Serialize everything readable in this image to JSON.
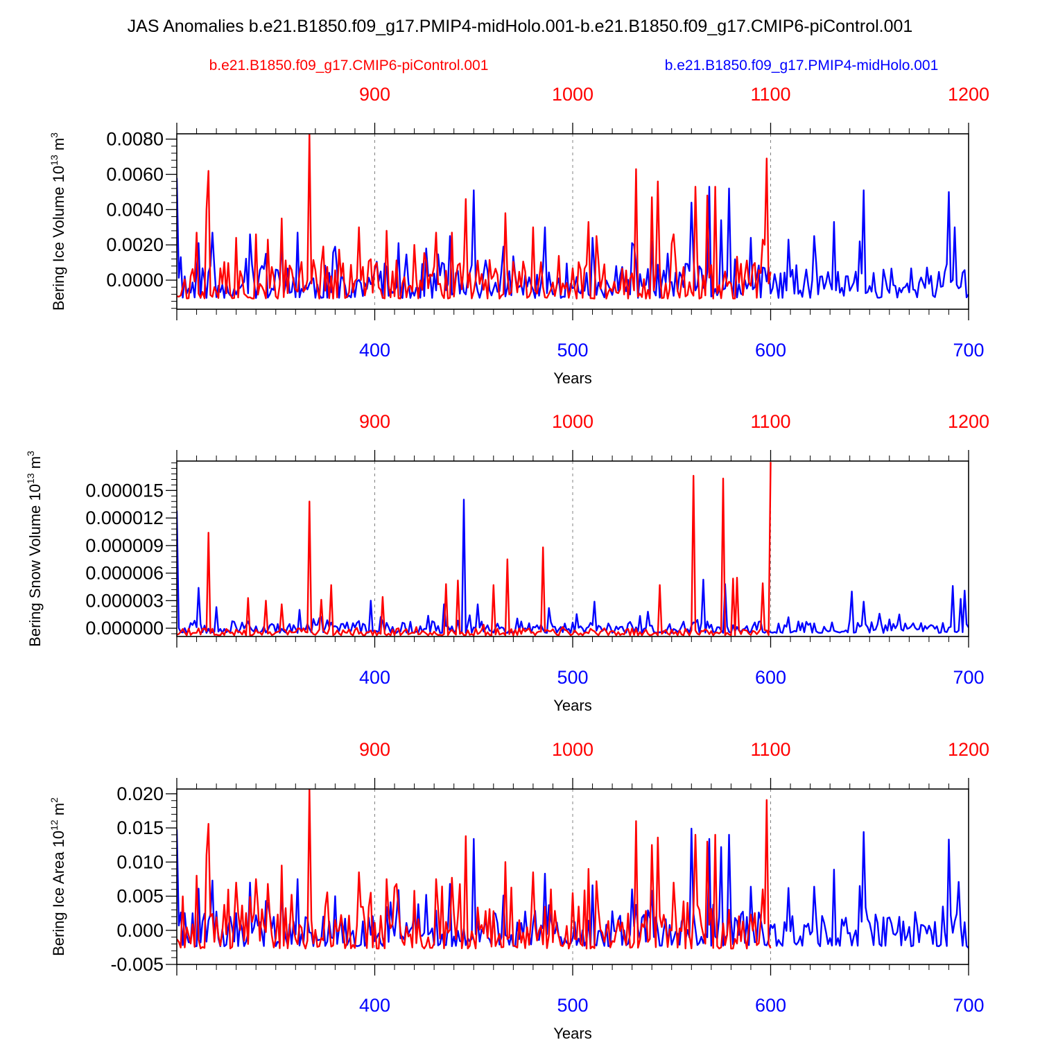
{
  "title": "JAS Anomalies b.e21.B1850.f09_g17.PMIP4-midHolo.001-b.e21.B1850.f09_g17.CMIP6-piControl.001",
  "legend": {
    "red_label": "b.e21.B1850.f09_g17.CMIP6-piControl.001",
    "blue_label": "b.e21.B1850.f09_g17.PMIP4-midHolo.001"
  },
  "colors": {
    "red": "#ff0000",
    "blue": "#0000ff",
    "axis": "#000000",
    "grid": "#808080"
  },
  "chart_data": [
    {
      "type": "line",
      "ylabel": "Bering Ice Volume 10",
      "ylabel_exp": "13",
      "ylabel_unit": " m",
      "ylabel_unit_exp": "3",
      "xlabel": "Years",
      "ylim": [
        -0.00165,
        0.0083
      ],
      "yticks": [
        0.0,
        0.002,
        0.004,
        0.006,
        0.008
      ],
      "ytick_labels": [
        "0.0000",
        "0.0020",
        "0.0040",
        "0.0060",
        "0.0080"
      ],
      "yminor": 0.0004,
      "xlim_bottom": [
        300,
        700
      ],
      "xlim_top": [
        800,
        1200
      ],
      "xticks_bottom": [
        "400",
        "500",
        "600",
        "700"
      ],
      "xticks_top": [
        "900",
        "1000",
        "1100",
        "1200"
      ],
      "grid_x": [
        400,
        500,
        600
      ],
      "series": [
        {
          "name": "b.e21.B1850.f09_g17.PMIP4-midHolo.001",
          "color": "blue",
          "x_start": 300,
          "x_end": 700,
          "seed": 11,
          "base": -0.0007,
          "spread": 0.0009,
          "peaks": [
            [
              300,
              0.0058
            ],
            [
              311,
              0.0021
            ],
            [
              318,
              0.0027
            ],
            [
              337,
              0.0026
            ],
            [
              345,
              0.0015
            ],
            [
              353,
              0.0023
            ],
            [
              361,
              0.0027
            ],
            [
              380,
              0.0019
            ],
            [
              412,
              0.0021
            ],
            [
              426,
              0.0018
            ],
            [
              438,
              0.0025
            ],
            [
              450,
              0.0051
            ],
            [
              465,
              0.0019
            ],
            [
              486,
              0.003
            ],
            [
              510,
              0.0024
            ],
            [
              530,
              0.0021
            ],
            [
              540,
              0.0022
            ],
            [
              560,
              0.0044
            ],
            [
              569,
              0.0053
            ],
            [
              575,
              0.0034
            ],
            [
              579,
              0.0052
            ],
            [
              590,
              0.0024
            ],
            [
              609,
              0.0023
            ],
            [
              622,
              0.0025
            ],
            [
              632,
              0.0033
            ],
            [
              645,
              0.0022
            ],
            [
              647,
              0.0051
            ],
            [
              657,
              0.0006
            ],
            [
              690,
              0.005
            ],
            [
              693,
              0.003
            ],
            [
              700,
              -0.0008
            ]
          ]
        },
        {
          "name": "b.e21.B1850.f09_g17.CMIP6-piControl.001",
          "color": "red",
          "x_start": 800,
          "x_end": 1100,
          "seed": 37,
          "base": -0.0007,
          "spread": 0.001,
          "peaks": [
            [
              816,
              0.0062
            ],
            [
              815,
              0.004
            ],
            [
              810,
              0.0027
            ],
            [
              830,
              0.0024
            ],
            [
              840,
              0.0026
            ],
            [
              846,
              0.0023
            ],
            [
              853,
              0.0035
            ],
            [
              867,
              0.0083
            ],
            [
              892,
              0.003
            ],
            [
              906,
              0.0028
            ],
            [
              920,
              0.002
            ],
            [
              931,
              0.0027
            ],
            [
              939,
              0.0027
            ],
            [
              946,
              0.0046
            ],
            [
              966,
              0.0038
            ],
            [
              980,
              0.003
            ],
            [
              1008,
              0.0033
            ],
            [
              1012,
              0.0025
            ],
            [
              1032,
              0.0063
            ],
            [
              1040,
              0.0047
            ],
            [
              1043,
              0.0056
            ],
            [
              1051,
              0.0026
            ],
            [
              1062,
              0.0053
            ],
            [
              1068,
              0.0048
            ],
            [
              1072,
              0.0053
            ],
            [
              1098,
              0.0069
            ],
            [
              1096,
              0.0023
            ]
          ]
        }
      ]
    },
    {
      "type": "line",
      "ylabel": "Bering Snow Volume 10",
      "ylabel_exp": "13",
      "ylabel_unit": " m",
      "ylabel_unit_exp": "3",
      "xlabel": "Years",
      "ylim": [
        -9e-07,
        1.82e-05
      ],
      "yticks": [
        0.0,
        3e-06,
        6e-06,
        9e-06,
        1.2e-05,
        1.5e-05
      ],
      "ytick_labels": [
        "0.000000",
        "0.000003",
        "0.000006",
        "0.000009",
        "0.000012",
        "0.000015"
      ],
      "yminor": 6e-07,
      "xlim_bottom": [
        300,
        700
      ],
      "xlim_top": [
        800,
        1200
      ],
      "xticks_bottom": [
        "400",
        "500",
        "600",
        "700"
      ],
      "xticks_top": [
        "900",
        "1000",
        "1100",
        "1200"
      ],
      "grid_x": [
        400,
        500,
        600
      ],
      "series": [
        {
          "name": "b.e21.B1850.f09_g17.PMIP4-midHolo.001",
          "color": "blue",
          "x_start": 300,
          "x_end": 700,
          "seed": 53,
          "base": -3e-07,
          "spread": 6e-07,
          "peaks": [
            [
              300,
              1.28e-05
            ],
            [
              311,
              4.4e-06
            ],
            [
              320,
              2.3e-06
            ],
            [
              362,
              2e-06
            ],
            [
              398,
              3e-06
            ],
            [
              435,
              2.6e-06
            ],
            [
              445,
              1.4e-05
            ],
            [
              452,
              2.6e-06
            ],
            [
              488,
              2.2e-06
            ],
            [
              511,
              2.9e-06
            ],
            [
              538,
              1.8e-06
            ],
            [
              566,
              5.3e-06
            ],
            [
              577,
              4.8e-06
            ],
            [
              609,
              1.2e-06
            ],
            [
              618,
              7e-07
            ],
            [
              641,
              4e-06
            ],
            [
              647,
              2.9e-06
            ],
            [
              665,
              1.5e-06
            ],
            [
              692,
              4.6e-06
            ],
            [
              696,
              3.2e-06
            ],
            [
              698,
              4.1e-06
            ]
          ]
        },
        {
          "name": "b.e21.B1850.f09_g17.CMIP6-piControl.001",
          "color": "red",
          "x_start": 800,
          "x_end": 1100,
          "seed": 71,
          "base": -6.5e-07,
          "spread": 3.5e-07,
          "peaks": [
            [
              816,
              1.04e-05
            ],
            [
              836,
              3.3e-06
            ],
            [
              845,
              3e-06
            ],
            [
              853,
              2.6e-06
            ],
            [
              867,
              1.38e-05
            ],
            [
              873,
              3.1e-06
            ],
            [
              878,
              4.7e-06
            ],
            [
              904,
              3.4e-06
            ],
            [
              936,
              4.8e-06
            ],
            [
              942,
              5.2e-06
            ],
            [
              960,
              4.7e-06
            ],
            [
              967,
              7.5e-06
            ],
            [
              985,
              8.8e-06
            ],
            [
              1044,
              4.7e-06
            ],
            [
              1061,
              1.66e-05
            ],
            [
              1076,
              1.63e-05
            ],
            [
              1081,
              5.4e-06
            ],
            [
              1083,
              5.5e-06
            ],
            [
              1096,
              4.9e-06
            ],
            [
              1100,
              1.81e-05
            ]
          ]
        }
      ]
    },
    {
      "type": "line",
      "ylabel": "Bering Ice Area 10",
      "ylabel_exp": "12",
      "ylabel_unit": " m",
      "ylabel_unit_exp": "2",
      "xlabel": "Years",
      "ylim": [
        -0.005,
        0.0207
      ],
      "yticks": [
        -0.005,
        0.0,
        0.005,
        0.01,
        0.015,
        0.02
      ],
      "ytick_labels": [
        "-0.005",
        "0.000",
        "0.005",
        "0.010",
        "0.015",
        "0.020"
      ],
      "yminor": 0.001,
      "xlim_bottom": [
        300,
        700
      ],
      "xlim_top": [
        800,
        1200
      ],
      "xticks_bottom": [
        "400",
        "500",
        "600",
        "700"
      ],
      "xticks_top": [
        "900",
        "1000",
        "1100",
        "1200"
      ],
      "grid_x": [
        400,
        500,
        600
      ],
      "series": [
        {
          "name": "b.e21.B1850.f09_g17.PMIP4-midHolo.001",
          "color": "blue",
          "x_start": 300,
          "x_end": 700,
          "seed": 89,
          "base": -0.0015,
          "spread": 0.0024,
          "peaks": [
            [
              300,
              0.0148
            ],
            [
              311,
              0.0061
            ],
            [
              318,
              0.0073
            ],
            [
              337,
              0.007
            ],
            [
              345,
              0.0043
            ],
            [
              353,
              0.006
            ],
            [
              361,
              0.0075
            ],
            [
              380,
              0.005
            ],
            [
              412,
              0.0059
            ],
            [
              426,
              0.0052
            ],
            [
              438,
              0.0068
            ],
            [
              450,
              0.0134
            ],
            [
              465,
              0.0051
            ],
            [
              486,
              0.0083
            ],
            [
              510,
              0.0066
            ],
            [
              530,
              0.006
            ],
            [
              540,
              0.0058
            ],
            [
              560,
              0.0149
            ],
            [
              569,
              0.0134
            ],
            [
              575,
              0.0122
            ],
            [
              579,
              0.014
            ],
            [
              590,
              0.0064
            ],
            [
              609,
              0.0062
            ],
            [
              622,
              0.0064
            ],
            [
              632,
              0.0089
            ],
            [
              645,
              0.0065
            ],
            [
              647,
              0.0144
            ],
            [
              657,
              0.0019
            ],
            [
              690,
              0.0133
            ],
            [
              695,
              0.0071
            ],
            [
              700,
              -0.0026
            ]
          ]
        },
        {
          "name": "b.e21.B1850.f09_g17.CMIP6-piControl.001",
          "color": "red",
          "x_start": 800,
          "x_end": 1100,
          "seed": 97,
          "base": -0.0017,
          "spread": 0.0028,
          "peaks": [
            [
              816,
              0.0156
            ],
            [
              815,
              0.011
            ],
            [
              810,
              0.008
            ],
            [
              830,
              0.007
            ],
            [
              840,
              0.0075
            ],
            [
              846,
              0.0068
            ],
            [
              853,
              0.0095
            ],
            [
              867,
              0.0207
            ],
            [
              892,
              0.0085
            ],
            [
              906,
              0.0075
            ],
            [
              920,
              0.0058
            ],
            [
              931,
              0.0075
            ],
            [
              939,
              0.0077
            ],
            [
              946,
              0.0138
            ],
            [
              966,
              0.01
            ],
            [
              980,
              0.0085
            ],
            [
              1008,
              0.009
            ],
            [
              1012,
              0.0072
            ],
            [
              1032,
              0.016
            ],
            [
              1040,
              0.0125
            ],
            [
              1043,
              0.0136
            ],
            [
              1051,
              0.007
            ],
            [
              1062,
              0.014
            ],
            [
              1068,
              0.013
            ],
            [
              1072,
              0.014
            ],
            [
              1098,
              0.0191
            ],
            [
              1096,
              0.006
            ]
          ]
        }
      ]
    }
  ]
}
